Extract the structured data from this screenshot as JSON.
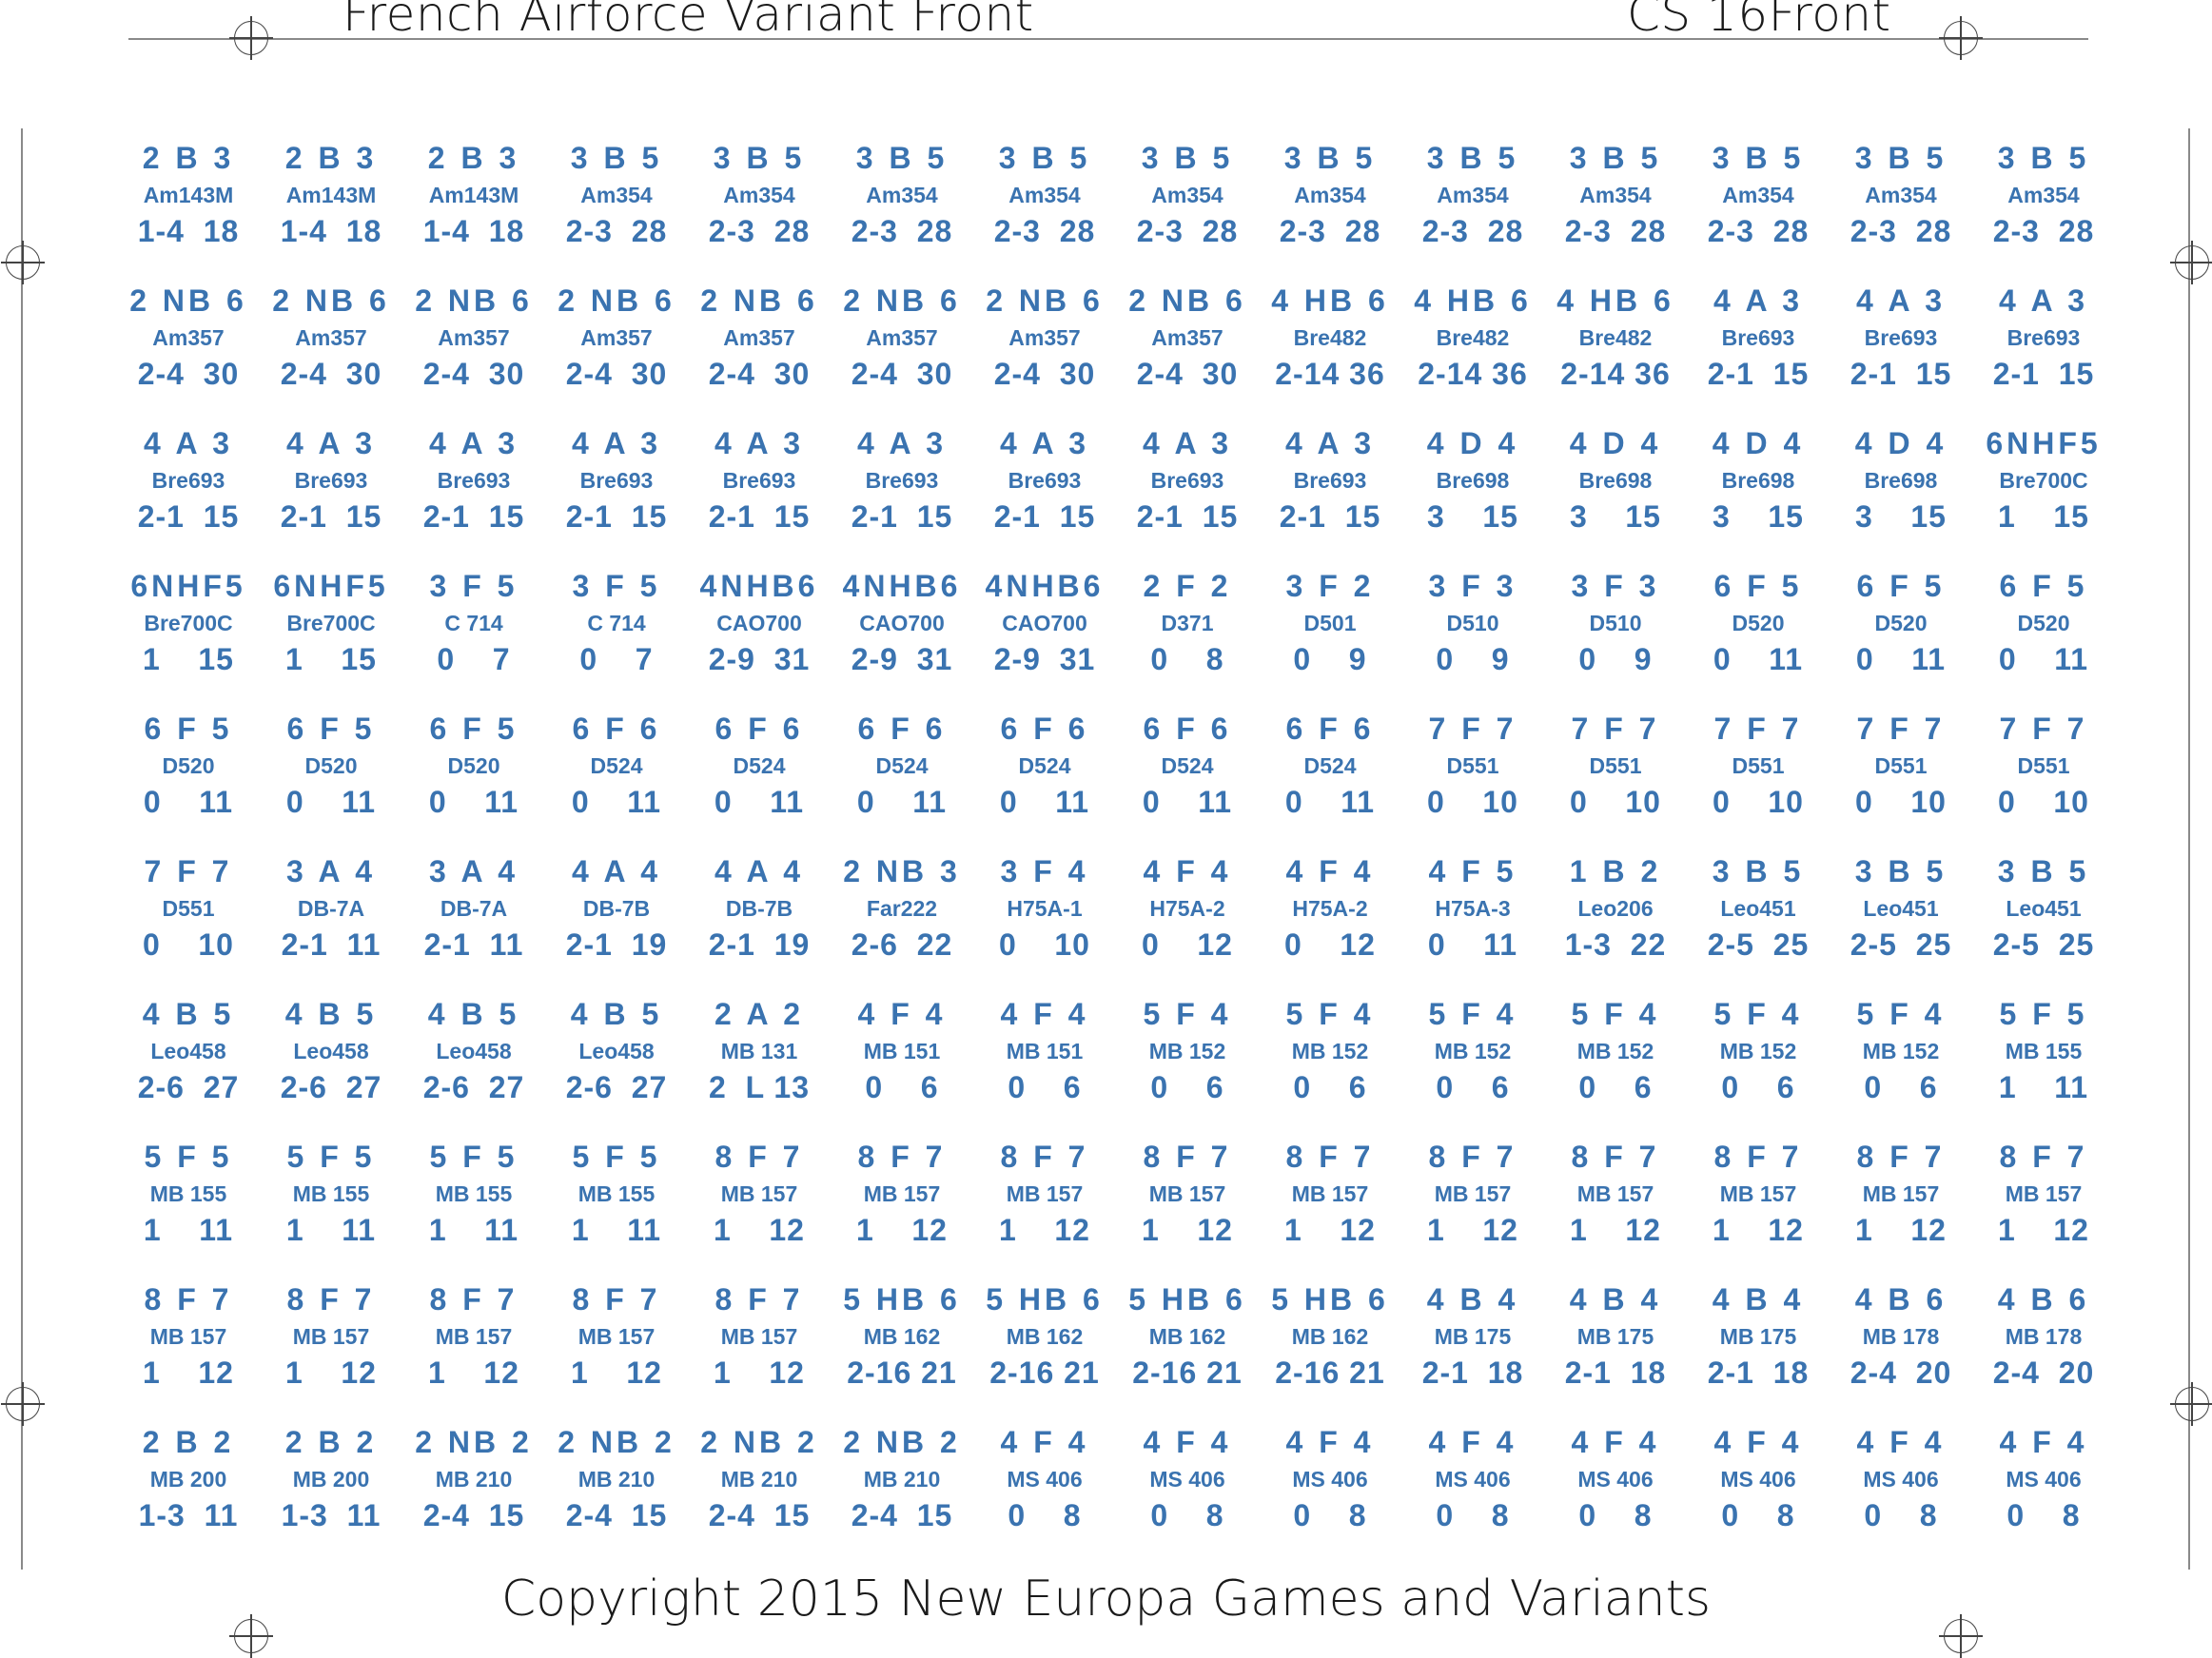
{
  "header": {
    "title_left": "French Airforce Variant Front",
    "title_right": "CS 16Front"
  },
  "footer": {
    "copyright": "Copyright 2015 New Europa Games and Variants"
  },
  "colors": {
    "counter_text": "#3a73b0",
    "line": "#8a8a8a"
  },
  "counters": [
    {
      "top": "2 B 3",
      "model": "Am143M",
      "bottom": "1-4  18"
    },
    {
      "top": "2 B 3",
      "model": "Am143M",
      "bottom": "1-4  18"
    },
    {
      "top": "2 B 3",
      "model": "Am143M",
      "bottom": "1-4  18"
    },
    {
      "top": "3 B 5",
      "model": "Am354",
      "bottom": "2-3  28"
    },
    {
      "top": "3 B 5",
      "model": "Am354",
      "bottom": "2-3  28"
    },
    {
      "top": "3 B 5",
      "model": "Am354",
      "bottom": "2-3  28"
    },
    {
      "top": "3 B 5",
      "model": "Am354",
      "bottom": "2-3  28"
    },
    {
      "top": "3 B 5",
      "model": "Am354",
      "bottom": "2-3  28"
    },
    {
      "top": "3 B 5",
      "model": "Am354",
      "bottom": "2-3  28"
    },
    {
      "top": "3 B 5",
      "model": "Am354",
      "bottom": "2-3  28"
    },
    {
      "top": "3 B 5",
      "model": "Am354",
      "bottom": "2-3  28"
    },
    {
      "top": "3 B 5",
      "model": "Am354",
      "bottom": "2-3  28"
    },
    {
      "top": "3 B 5",
      "model": "Am354",
      "bottom": "2-3  28"
    },
    {
      "top": "3 B 5",
      "model": "Am354",
      "bottom": "2-3  28"
    },
    {
      "top": "2 NB 6",
      "model": "Am357",
      "bottom": "2-4  30"
    },
    {
      "top": "2 NB 6",
      "model": "Am357",
      "bottom": "2-4  30"
    },
    {
      "top": "2 NB 6",
      "model": "Am357",
      "bottom": "2-4  30"
    },
    {
      "top": "2 NB 6",
      "model": "Am357",
      "bottom": "2-4  30"
    },
    {
      "top": "2 NB 6",
      "model": "Am357",
      "bottom": "2-4  30"
    },
    {
      "top": "2 NB 6",
      "model": "Am357",
      "bottom": "2-4  30"
    },
    {
      "top": "2 NB 6",
      "model": "Am357",
      "bottom": "2-4  30"
    },
    {
      "top": "2 NB 6",
      "model": "Am357",
      "bottom": "2-4  30"
    },
    {
      "top": "4 HB 6",
      "model": "Bre482",
      "bottom": "2-14 36"
    },
    {
      "top": "4 HB 6",
      "model": "Bre482",
      "bottom": "2-14 36"
    },
    {
      "top": "4 HB 6",
      "model": "Bre482",
      "bottom": "2-14 36"
    },
    {
      "top": "4 A 3",
      "model": "Bre693",
      "bottom": "2-1  15"
    },
    {
      "top": "4 A 3",
      "model": "Bre693",
      "bottom": "2-1  15"
    },
    {
      "top": "4 A 3",
      "model": "Bre693",
      "bottom": "2-1  15"
    },
    {
      "top": "4 A 3",
      "model": "Bre693",
      "bottom": "2-1  15"
    },
    {
      "top": "4 A 3",
      "model": "Bre693",
      "bottom": "2-1  15"
    },
    {
      "top": "4 A 3",
      "model": "Bre693",
      "bottom": "2-1  15"
    },
    {
      "top": "4 A 3",
      "model": "Bre693",
      "bottom": "2-1  15"
    },
    {
      "top": "4 A 3",
      "model": "Bre693",
      "bottom": "2-1  15"
    },
    {
      "top": "4 A 3",
      "model": "Bre693",
      "bottom": "2-1  15"
    },
    {
      "top": "4 A 3",
      "model": "Bre693",
      "bottom": "2-1  15"
    },
    {
      "top": "4 A 3",
      "model": "Bre693",
      "bottom": "2-1  15"
    },
    {
      "top": "4 A 3",
      "model": "Bre693",
      "bottom": "2-1  15"
    },
    {
      "top": "4 D 4",
      "model": "Bre698",
      "bottom": "3    15"
    },
    {
      "top": "4 D 4",
      "model": "Bre698",
      "bottom": "3    15"
    },
    {
      "top": "4 D 4",
      "model": "Bre698",
      "bottom": "3    15"
    },
    {
      "top": "4 D 4",
      "model": "Bre698",
      "bottom": "3    15"
    },
    {
      "top": "6NHF5",
      "model": "Bre700C",
      "bottom": "1    15"
    },
    {
      "top": "6NHF5",
      "model": "Bre700C",
      "bottom": "1    15"
    },
    {
      "top": "6NHF5",
      "model": "Bre700C",
      "bottom": "1    15"
    },
    {
      "top": "3 F 5",
      "model": "C 714",
      "bottom": "0    7"
    },
    {
      "top": "3 F 5",
      "model": "C 714",
      "bottom": "0    7"
    },
    {
      "top": "4NHB6",
      "model": "CAO700",
      "bottom": "2-9  31"
    },
    {
      "top": "4NHB6",
      "model": "CAO700",
      "bottom": "2-9  31"
    },
    {
      "top": "4NHB6",
      "model": "CAO700",
      "bottom": "2-9  31"
    },
    {
      "top": "2 F 2",
      "model": "D371",
      "bottom": "0    8"
    },
    {
      "top": "3 F 2",
      "model": "D501",
      "bottom": "0    9"
    },
    {
      "top": "3 F 3",
      "model": "D510",
      "bottom": "0    9"
    },
    {
      "top": "3 F 3",
      "model": "D510",
      "bottom": "0    9"
    },
    {
      "top": "6 F 5",
      "model": "D520",
      "bottom": "0    11"
    },
    {
      "top": "6 F 5",
      "model": "D520",
      "bottom": "0    11"
    },
    {
      "top": "6 F 5",
      "model": "D520",
      "bottom": "0    11"
    },
    {
      "top": "6 F 5",
      "model": "D520",
      "bottom": "0    11"
    },
    {
      "top": "6 F 5",
      "model": "D520",
      "bottom": "0    11"
    },
    {
      "top": "6 F 5",
      "model": "D520",
      "bottom": "0    11"
    },
    {
      "top": "6 F 6",
      "model": "D524",
      "bottom": "0    11"
    },
    {
      "top": "6 F 6",
      "model": "D524",
      "bottom": "0    11"
    },
    {
      "top": "6 F 6",
      "model": "D524",
      "bottom": "0    11"
    },
    {
      "top": "6 F 6",
      "model": "D524",
      "bottom": "0    11"
    },
    {
      "top": "6 F 6",
      "model": "D524",
      "bottom": "0    11"
    },
    {
      "top": "6 F 6",
      "model": "D524",
      "bottom": "0    11"
    },
    {
      "top": "7 F 7",
      "model": "D551",
      "bottom": "0    10"
    },
    {
      "top": "7 F 7",
      "model": "D551",
      "bottom": "0    10"
    },
    {
      "top": "7 F 7",
      "model": "D551",
      "bottom": "0    10"
    },
    {
      "top": "7 F 7",
      "model": "D551",
      "bottom": "0    10"
    },
    {
      "top": "7 F 7",
      "model": "D551",
      "bottom": "0    10"
    },
    {
      "top": "7 F 7",
      "model": "D551",
      "bottom": "0    10"
    },
    {
      "top": "3 A 4",
      "model": "DB-7A",
      "bottom": "2-1  11"
    },
    {
      "top": "3 A 4",
      "model": "DB-7A",
      "bottom": "2-1  11"
    },
    {
      "top": "4 A 4",
      "model": "DB-7B",
      "bottom": "2-1  19"
    },
    {
      "top": "4 A 4",
      "model": "DB-7B",
      "bottom": "2-1  19"
    },
    {
      "top": "2 NB 3",
      "model": "Far222",
      "bottom": "2-6  22"
    },
    {
      "top": "3 F 4",
      "model": "H75A-1",
      "bottom": "0    10"
    },
    {
      "top": "4 F 4",
      "model": "H75A-2",
      "bottom": "0    12"
    },
    {
      "top": "4 F 4",
      "model": "H75A-2",
      "bottom": "0    12"
    },
    {
      "top": "4 F 5",
      "model": "H75A-3",
      "bottom": "0    11"
    },
    {
      "top": "1 B 2",
      "model": "Leo206",
      "bottom": "1-3  22"
    },
    {
      "top": "3 B 5",
      "model": "Leo451",
      "bottom": "2-5  25"
    },
    {
      "top": "3 B 5",
      "model": "Leo451",
      "bottom": "2-5  25"
    },
    {
      "top": "3 B 5",
      "model": "Leo451",
      "bottom": "2-5  25"
    },
    {
      "top": "4 B 5",
      "model": "Leo458",
      "bottom": "2-6  27"
    },
    {
      "top": "4 B 5",
      "model": "Leo458",
      "bottom": "2-6  27"
    },
    {
      "top": "4 B 5",
      "model": "Leo458",
      "bottom": "2-6  27"
    },
    {
      "top": "4 B 5",
      "model": "Leo458",
      "bottom": "2-6  27"
    },
    {
      "top": "2 A 2",
      "model": "MB 131",
      "bottom": "2  L 13"
    },
    {
      "top": "4 F 4",
      "model": "MB 151",
      "bottom": "0    6"
    },
    {
      "top": "4 F 4",
      "model": "MB 151",
      "bottom": "0    6"
    },
    {
      "top": "5 F 4",
      "model": "MB 152",
      "bottom": "0    6"
    },
    {
      "top": "5 F 4",
      "model": "MB 152",
      "bottom": "0    6"
    },
    {
      "top": "5 F 4",
      "model": "MB 152",
      "bottom": "0    6"
    },
    {
      "top": "5 F 4",
      "model": "MB 152",
      "bottom": "0    6"
    },
    {
      "top": "5 F 4",
      "model": "MB 152",
      "bottom": "0    6"
    },
    {
      "top": "5 F 4",
      "model": "MB 152",
      "bottom": "0    6"
    },
    {
      "top": "5 F 5",
      "model": "MB 155",
      "bottom": "1    11"
    },
    {
      "top": "5 F 5",
      "model": "MB 155",
      "bottom": "1    11"
    },
    {
      "top": "5 F 5",
      "model": "MB 155",
      "bottom": "1    11"
    },
    {
      "top": "5 F 5",
      "model": "MB 155",
      "bottom": "1    11"
    },
    {
      "top": "5 F 5",
      "model": "MB 155",
      "bottom": "1    11"
    },
    {
      "top": "8 F 7",
      "model": "MB 157",
      "bottom": "1    12"
    },
    {
      "top": "8 F 7",
      "model": "MB 157",
      "bottom": "1    12"
    },
    {
      "top": "8 F 7",
      "model": "MB 157",
      "bottom": "1    12"
    },
    {
      "top": "8 F 7",
      "model": "MB 157",
      "bottom": "1    12"
    },
    {
      "top": "8 F 7",
      "model": "MB 157",
      "bottom": "1    12"
    },
    {
      "top": "8 F 7",
      "model": "MB 157",
      "bottom": "1    12"
    },
    {
      "top": "8 F 7",
      "model": "MB 157",
      "bottom": "1    12"
    },
    {
      "top": "8 F 7",
      "model": "MB 157",
      "bottom": "1    12"
    },
    {
      "top": "8 F 7",
      "model": "MB 157",
      "bottom": "1    12"
    },
    {
      "top": "8 F 7",
      "model": "MB 157",
      "bottom": "1    12"
    },
    {
      "top": "8 F 7",
      "model": "MB 157",
      "bottom": "1    12"
    },
    {
      "top": "8 F 7",
      "model": "MB 157",
      "bottom": "1    12"
    },
    {
      "top": "8 F 7",
      "model": "MB 157",
      "bottom": "1    12"
    },
    {
      "top": "8 F 7",
      "model": "MB 157",
      "bottom": "1    12"
    },
    {
      "top": "8 F 7",
      "model": "MB 157",
      "bottom": "1    12"
    },
    {
      "top": "5 HB 6",
      "model": "MB 162",
      "bottom": "2-16 21"
    },
    {
      "top": "5 HB 6",
      "model": "MB 162",
      "bottom": "2-16 21"
    },
    {
      "top": "5 HB 6",
      "model": "MB 162",
      "bottom": "2-16 21"
    },
    {
      "top": "5 HB 6",
      "model": "MB 162",
      "bottom": "2-16 21"
    },
    {
      "top": "4 B 4",
      "model": "MB 175",
      "bottom": "2-1  18"
    },
    {
      "top": "4 B 4",
      "model": "MB 175",
      "bottom": "2-1  18"
    },
    {
      "top": "4 B 4",
      "model": "MB 175",
      "bottom": "2-1  18"
    },
    {
      "top": "4 B 6",
      "model": "MB 178",
      "bottom": "2-4  20"
    },
    {
      "top": "4 B 6",
      "model": "MB 178",
      "bottom": "2-4  20"
    },
    {
      "top": "2 B 2",
      "model": "MB 200",
      "bottom": "1-3  11"
    },
    {
      "top": "2 B 2",
      "model": "MB 200",
      "bottom": "1-3  11"
    },
    {
      "top": "2 NB 2",
      "model": "MB 210",
      "bottom": "2-4  15"
    },
    {
      "top": "2 NB 2",
      "model": "MB 210",
      "bottom": "2-4  15"
    },
    {
      "top": "2 NB 2",
      "model": "MB 210",
      "bottom": "2-4  15"
    },
    {
      "top": "2 NB 2",
      "model": "MB 210",
      "bottom": "2-4  15"
    },
    {
      "top": "4 F 4",
      "model": "MS 406",
      "bottom": "0    8"
    },
    {
      "top": "4 F 4",
      "model": "MS 406",
      "bottom": "0    8"
    },
    {
      "top": "4 F 4",
      "model": "MS 406",
      "bottom": "0    8"
    },
    {
      "top": "4 F 4",
      "model": "MS 406",
      "bottom": "0    8"
    },
    {
      "top": "4 F 4",
      "model": "MS 406",
      "bottom": "0    8"
    },
    {
      "top": "4 F 4",
      "model": "MS 406",
      "bottom": "0    8"
    },
    {
      "top": "4 F 4",
      "model": "MS 406",
      "bottom": "0    8"
    },
    {
      "top": "4 F 4",
      "model": "MS 406",
      "bottom": "0    8"
    }
  ]
}
